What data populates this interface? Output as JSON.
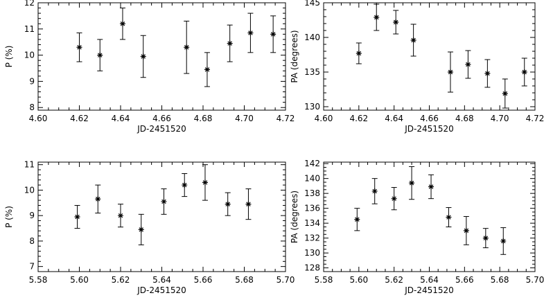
{
  "chart_data": [
    {
      "type": "scatter",
      "xlabel": "JD-2451520",
      "ylabel": "P (%)",
      "xlim": [
        4.6,
        4.72
      ],
      "ylim": [
        7.9,
        12.0
      ],
      "xticks": [
        "4.60",
        "4.62",
        "4.64",
        "4.66",
        "4.68",
        "4.70",
        "4.72"
      ],
      "yticks": [
        "8",
        "9",
        "10",
        "11",
        "12"
      ],
      "x": [
        4.62,
        4.63,
        4.641,
        4.651,
        4.672,
        4.682,
        4.693,
        4.703,
        4.714
      ],
      "y": [
        10.3,
        10.0,
        11.2,
        9.95,
        10.3,
        9.45,
        10.45,
        10.85,
        10.8
      ],
      "yerr": [
        0.55,
        0.6,
        0.6,
        0.8,
        1.0,
        0.65,
        0.7,
        0.75,
        0.7
      ],
      "marker": "asterisk",
      "grid": false
    },
    {
      "type": "scatter",
      "xlabel": "JD-2451520",
      "ylabel": "PA (degrees)",
      "xlim": [
        4.6,
        4.72
      ],
      "ylim": [
        129.5,
        145.0
      ],
      "xticks": [
        "4.60",
        "4.62",
        "4.64",
        "4.66",
        "4.68",
        "4.70",
        "4.72"
      ],
      "yticks": [
        "130",
        "135",
        "140",
        "145"
      ],
      "x": [
        4.62,
        4.63,
        4.641,
        4.651,
        4.672,
        4.682,
        4.693,
        4.703,
        4.714
      ],
      "y": [
        137.7,
        142.9,
        142.2,
        139.6,
        135.0,
        136.1,
        134.8,
        131.9,
        135.0
      ],
      "yerr": [
        1.5,
        1.9,
        1.7,
        2.3,
        2.9,
        2.0,
        2.0,
        2.1,
        2.0
      ],
      "marker": "asterisk",
      "grid": false
    },
    {
      "type": "scatter",
      "xlabel": "JD-2451520",
      "ylabel": "P (%)",
      "xlim": [
        5.58,
        5.7
      ],
      "ylim": [
        6.8,
        11.1
      ],
      "xticks": [
        "5.58",
        "5.60",
        "5.62",
        "5.64",
        "5.66",
        "5.68",
        "5.70"
      ],
      "yticks": [
        "7",
        "8",
        "9",
        "10",
        "11"
      ],
      "x": [
        5.599,
        5.609,
        5.62,
        5.63,
        5.641,
        5.651,
        5.661,
        5.672,
        5.682
      ],
      "y": [
        8.95,
        9.65,
        9.0,
        8.45,
        9.55,
        10.2,
        10.3,
        9.45,
        9.45
      ],
      "yerr": [
        0.45,
        0.55,
        0.45,
        0.6,
        0.5,
        0.45,
        0.7,
        0.45,
        0.6
      ],
      "marker": "asterisk",
      "grid": false
    },
    {
      "type": "scatter",
      "xlabel": "JD-2451520",
      "ylabel": "PA (degrees)",
      "xlim": [
        5.58,
        5.7
      ],
      "ylim": [
        127.5,
        142.2
      ],
      "xticks": [
        "5.58",
        "5.60",
        "5.62",
        "5.64",
        "5.66",
        "5.68",
        "5.70"
      ],
      "yticks": [
        "128",
        "130",
        "132",
        "134",
        "136",
        "138",
        "140",
        "142"
      ],
      "x": [
        5.599,
        5.609,
        5.62,
        5.63,
        5.641,
        5.651,
        5.661,
        5.672,
        5.682
      ],
      "y": [
        134.5,
        138.3,
        137.3,
        139.4,
        138.9,
        134.8,
        133.0,
        132.0,
        131.6
      ],
      "yerr": [
        1.5,
        1.7,
        1.5,
        2.2,
        1.6,
        1.3,
        1.9,
        1.3,
        1.8
      ],
      "marker": "asterisk",
      "grid": false
    }
  ]
}
